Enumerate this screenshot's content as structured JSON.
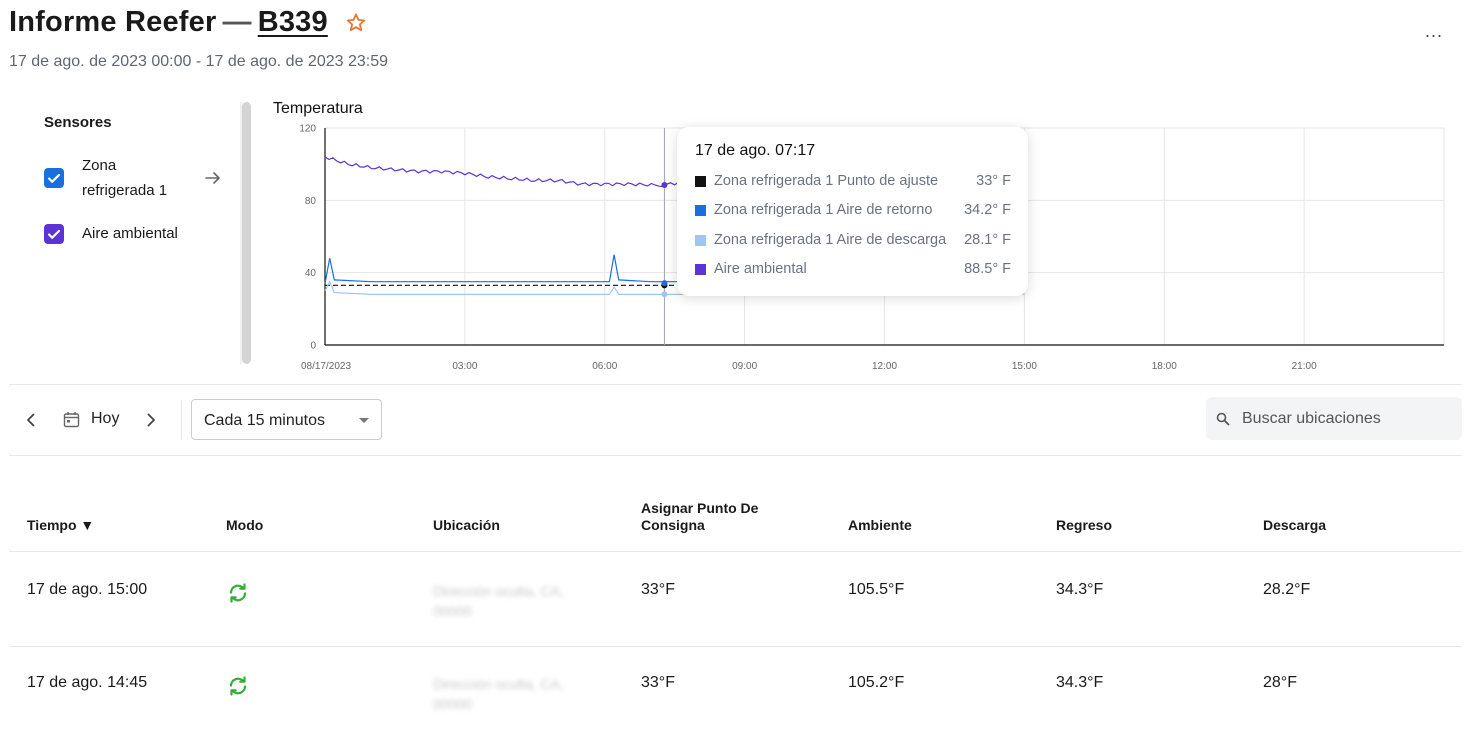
{
  "header": {
    "title_prefix": "Informe Reefer",
    "title_dash": "—",
    "asset_id": "B339",
    "date_range": "17 de ago. de 2023 00:00 - 17 de ago. de 2023 23:59",
    "more_label": "..."
  },
  "sensors": {
    "title": "Sensores",
    "items": [
      {
        "label_line1": "Zona",
        "label_line2": "refrigerada 1",
        "checked": true,
        "color": "#1a6fdf"
      },
      {
        "label": "Aire ambiental",
        "checked": true,
        "color": "#5b33d6"
      }
    ]
  },
  "chart_data": {
    "type": "line",
    "title": "Temperatura",
    "ylim": [
      0,
      120
    ],
    "yticks": [
      "120",
      "80",
      "40",
      "0"
    ],
    "xticks": [
      "08/17/2023",
      "03:00",
      "06:00",
      "09:00",
      "12:00",
      "15:00",
      "18:00",
      "21:00"
    ],
    "x_hours_range": [
      0,
      24
    ],
    "grid": true,
    "series": [
      {
        "name": "Zona refrigerada 1 Punto de ajuste",
        "color": "#111111",
        "dash": true,
        "points": [
          [
            0,
            33
          ],
          [
            15,
            33
          ]
        ]
      },
      {
        "name": "Zona refrigerada 1 Aire de retorno",
        "color": "#1a6fdf",
        "points": [
          [
            0,
            34
          ],
          [
            0.1,
            48
          ],
          [
            0.2,
            36
          ],
          [
            1,
            35
          ],
          [
            3,
            35
          ],
          [
            5,
            35
          ],
          [
            6.1,
            35
          ],
          [
            6.2,
            50
          ],
          [
            6.3,
            36
          ],
          [
            7,
            35
          ],
          [
            9,
            35
          ],
          [
            12,
            35
          ],
          [
            15,
            34.3
          ]
        ]
      },
      {
        "name": "Zona refrigerada 1 Aire de descarga",
        "color": "#9fc5f5",
        "points": [
          [
            0,
            30
          ],
          [
            0.1,
            35
          ],
          [
            0.2,
            29
          ],
          [
            1,
            28
          ],
          [
            3,
            28
          ],
          [
            5,
            28
          ],
          [
            6.1,
            28
          ],
          [
            6.2,
            32
          ],
          [
            6.3,
            28
          ],
          [
            7,
            28
          ],
          [
            9,
            28
          ],
          [
            12,
            28
          ],
          [
            15,
            28.2
          ]
        ]
      },
      {
        "name": "Aire ambiental",
        "color": "#5b33d6",
        "points": [
          [
            0,
            104
          ],
          [
            0.5,
            100
          ],
          [
            1,
            98
          ],
          [
            1.5,
            97
          ],
          [
            2,
            96
          ],
          [
            2.5,
            96
          ],
          [
            3,
            95
          ],
          [
            3.5,
            93
          ],
          [
            4,
            92
          ],
          [
            4.5,
            91
          ],
          [
            5,
            91
          ],
          [
            5.5,
            89
          ],
          [
            6,
            89
          ],
          [
            6.5,
            89
          ],
          [
            7,
            88.5
          ],
          [
            7.25,
            88.5
          ],
          [
            9,
            95
          ],
          [
            12,
            100
          ],
          [
            14.5,
            103
          ],
          [
            15,
            105.5
          ]
        ]
      }
    ],
    "hover_x_hours": 7.28
  },
  "tooltip": {
    "time": "17 de ago. 07:17",
    "rows": [
      {
        "name": "Zona refrigerada 1 Punto de ajuste",
        "value": "33° F",
        "color": "#111111"
      },
      {
        "name": "Zona refrigerada 1 Aire de retorno",
        "value": "34.2° F",
        "color": "#1a6fdf"
      },
      {
        "name": "Zona refrigerada 1 Aire de descarga",
        "value": "28.1° F",
        "color": "#9fc5f5"
      },
      {
        "name": "Aire ambiental",
        "value": "88.5° F",
        "color": "#5b33d6"
      }
    ]
  },
  "toolbar": {
    "today_label": "Hoy",
    "interval_value": "Cada 15 minutos",
    "search_placeholder": "Buscar ubicaciones"
  },
  "table": {
    "headers": {
      "time": "Tiempo ▼",
      "mode": "Modo",
      "location": "Ubicación",
      "setpoint_line1": "Asignar Punto De",
      "setpoint_line2": "Consigna",
      "ambient": "Ambiente",
      "return": "Regreso",
      "discharge": "Descarga"
    },
    "rows": [
      {
        "time": "17 de ago. 15:00",
        "mode_icon": "cycle-icon",
        "location_l1": "Dirección oculta, CA,",
        "location_l2": "00000",
        "setpoint": "33°F",
        "ambient": "105.5°F",
        "return": "34.3°F",
        "discharge": "28.2°F"
      },
      {
        "time": "17 de ago. 14:45",
        "mode_icon": "cycle-icon",
        "location_l1": "Dirección oculta, CA,",
        "location_l2": "00000",
        "setpoint": "33°F",
        "ambient": "105.2°F",
        "return": "34.3°F",
        "discharge": "28°F"
      }
    ],
    "mode_color": "#2db02d"
  }
}
